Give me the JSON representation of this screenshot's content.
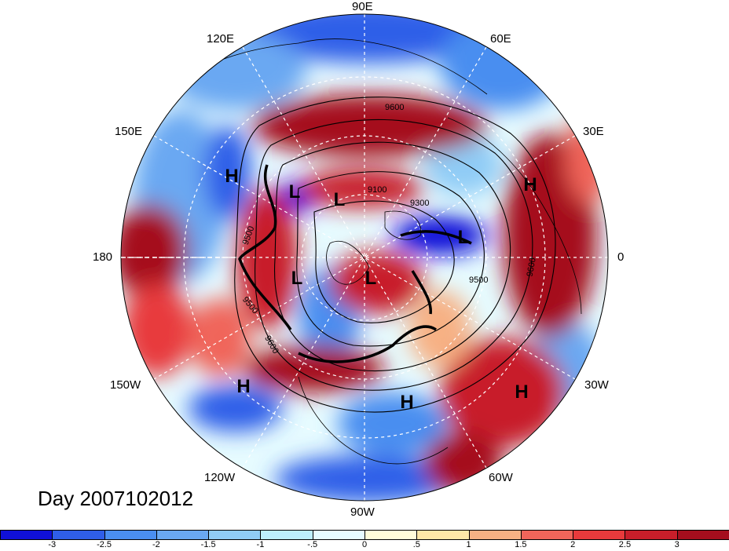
{
  "longitude_labels": [
    {
      "text": "90E"
    },
    {
      "text": "120E"
    },
    {
      "text": "60E"
    },
    {
      "text": "150E"
    },
    {
      "text": "30E"
    },
    {
      "text": "180"
    },
    {
      "text": "0"
    },
    {
      "text": "150W"
    },
    {
      "text": "30W"
    },
    {
      "text": "120W"
    },
    {
      "text": "60W"
    },
    {
      "text": "90W"
    }
  ],
  "pressure_systems": [
    {
      "type": "H",
      "label": "H"
    },
    {
      "type": "H",
      "label": "H"
    },
    {
      "type": "L",
      "label": "L"
    },
    {
      "type": "L",
      "label": "L"
    },
    {
      "type": "L",
      "label": "L"
    },
    {
      "type": "L",
      "label": "L"
    },
    {
      "type": "L",
      "label": "L"
    },
    {
      "type": "H",
      "label": "H"
    },
    {
      "type": "H",
      "label": "H"
    },
    {
      "type": "H",
      "label": "H"
    }
  ],
  "contour_labels": [
    "9600",
    "9100",
    "9300",
    "9500",
    "9600",
    "9500",
    "9500",
    "9600"
  ],
  "day_label": "Day 2007102012",
  "colorbar": {
    "ticks": [
      "-3",
      "-2.5",
      "-2",
      "-1.5",
      "-1",
      "-.5",
      "0",
      ".5",
      "1",
      "1.5",
      "2",
      "2.5",
      "3"
    ],
    "colors": [
      "#1010d8",
      "#2f5ee8",
      "#4a8ef0",
      "#6aa8f2",
      "#90ccf6",
      "#bdeefc",
      "#e6fbff",
      "#fffcd9",
      "#fde7a8",
      "#f7b184",
      "#f0655a",
      "#e83a3c",
      "#c81e2a",
      "#a50e1d"
    ]
  },
  "colors": {
    "graticule": "#ffffff",
    "contour": "#000000",
    "coast": "#000000"
  }
}
